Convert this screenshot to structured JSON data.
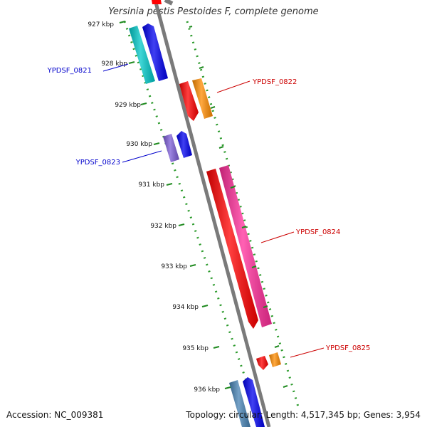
{
  "title": "Yersinia pestis Pestoides F, complete genome",
  "accession": "Accession: NC_009381",
  "summary": "Topology: circular; Length: 4,517,345 bp; Genes: 3,954",
  "ticks": [
    "927 kbp",
    "928 kbp",
    "929 kbp",
    "930 kbp",
    "931 kbp",
    "932 kbp",
    "933 kbp",
    "934 kbp",
    "935 kbp",
    "936 kbp"
  ],
  "gene_labels": {
    "YPDSF_0821": "YPDSF_0821",
    "YPDSF_0822": "YPDSF_0822",
    "YPDSF_0823": "YPDSF_0823",
    "YPDSF_0824": "YPDSF_0824",
    "YPDSF_0825": "YPDSF_0825"
  },
  "colors": {
    "backbone": "#808080",
    "tick": "#1f8a1f",
    "track_dots": "#2b9a2b",
    "reverse_label": "#0000cc",
    "forward_label": "#cc0000",
    "red": "#ff0000",
    "orange": "#ff8c00",
    "pink": "#ff2d9a",
    "cyan": "#00c8c8",
    "blue": "#0000ee",
    "purple": "#7b5bd6",
    "steel": "#4682b4"
  }
}
